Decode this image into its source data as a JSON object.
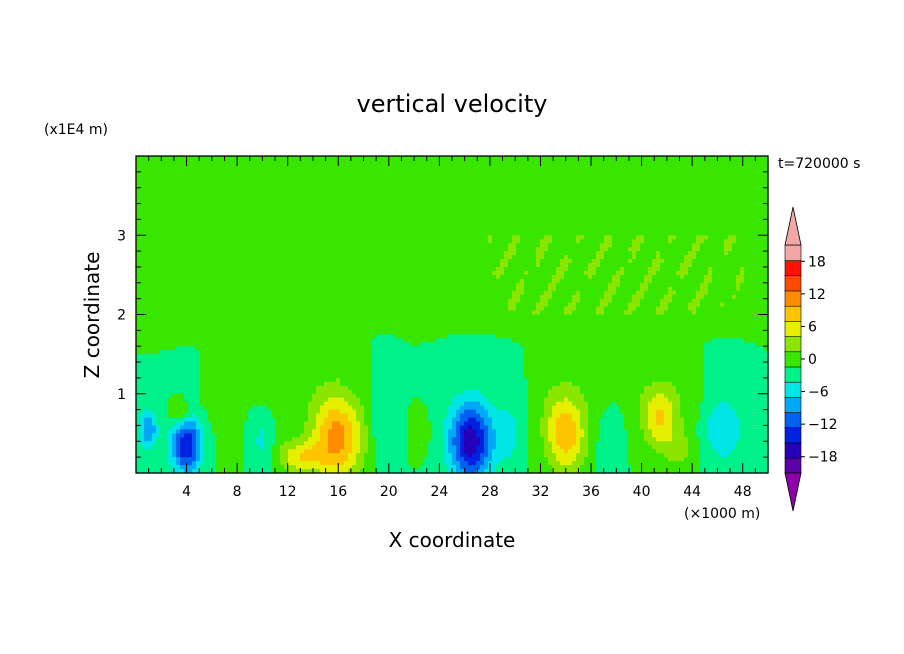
{
  "chart_data": {
    "type": "heatmap",
    "title": "vertical velocity",
    "xlabel": "X coordinate",
    "ylabel": "Z coordinate",
    "x_unit": "(×1000 m)",
    "y_unit": "(x1E4 m)",
    "time_label": "t=720000 s",
    "xlim": [
      0,
      50
    ],
    "ylim": [
      0,
      4
    ],
    "x_ticks": [
      4,
      8,
      12,
      16,
      20,
      24,
      28,
      32,
      36,
      40,
      44,
      48
    ],
    "x_tick_labels": [
      "4",
      "8",
      "12",
      "16",
      "20",
      "24",
      "28",
      "32",
      "36",
      "40",
      "44",
      "48"
    ],
    "y_ticks": [
      1,
      2,
      3
    ],
    "y_tick_labels": [
      "1",
      "2",
      "3"
    ],
    "colorbar": {
      "levels": [
        -21,
        -18,
        -15,
        -12,
        -9,
        -6,
        -3,
        0,
        3,
        6,
        9,
        12,
        15,
        18,
        21
      ],
      "colors": [
        "#5e00a8",
        "#2600b8",
        "#0022e0",
        "#0060f0",
        "#00a8f8",
        "#00e6e6",
        "#00f08a",
        "#38e600",
        "#8ae600",
        "#e6ef00",
        "#ffc400",
        "#ff8c00",
        "#ff4a00",
        "#ff1000",
        "#f3a6a6"
      ],
      "under_color": "#8e00a8",
      "over_color": "#f3a6a6",
      "tick_values": [
        18,
        12,
        6,
        0,
        -6,
        -12,
        -18
      ],
      "tick_labels": [
        "18",
        "12",
        "6",
        "0",
        "−6",
        "−12",
        "−18"
      ]
    },
    "blobs": [
      {
        "x": 1.0,
        "z": 0.55,
        "a": -9,
        "sx": 0.7,
        "sz": 0.25
      },
      {
        "x": 4.0,
        "z": 0.35,
        "a": -15,
        "sx": 1.2,
        "sz": 0.35
      },
      {
        "x": 3.5,
        "z": 0.75,
        "a": 6,
        "sx": 0.7,
        "sz": 0.15
      },
      {
        "x": 10.0,
        "z": 0.4,
        "a": -4,
        "sx": 1.0,
        "sz": 0.4
      },
      {
        "x": 13.0,
        "z": 0.2,
        "a": 8,
        "sx": 1.8,
        "sz": 0.2
      },
      {
        "x": 16.0,
        "z": 0.45,
        "a": 13,
        "sx": 2.0,
        "sz": 0.55
      },
      {
        "x": 19.5,
        "z": 0.6,
        "a": -3,
        "sx": 1.0,
        "sz": 0.5
      },
      {
        "x": 22.5,
        "z": 0.5,
        "a": 3,
        "sx": 0.6,
        "sz": 0.2
      },
      {
        "x": 26.5,
        "z": 0.4,
        "a": -17,
        "sx": 1.7,
        "sz": 0.5
      },
      {
        "x": 29.5,
        "z": 0.5,
        "a": -4,
        "sx": 1.0,
        "sz": 0.4
      },
      {
        "x": 34.0,
        "z": 0.5,
        "a": 11,
        "sx": 1.6,
        "sz": 0.5
      },
      {
        "x": 37.5,
        "z": 0.4,
        "a": -3,
        "sx": 1.0,
        "sz": 0.4
      },
      {
        "x": 41.5,
        "z": 0.7,
        "a": 9,
        "sx": 1.4,
        "sz": 0.4
      },
      {
        "x": 43.0,
        "z": 0.3,
        "a": 4,
        "sx": 1.0,
        "sz": 0.25
      },
      {
        "x": 46.5,
        "z": 0.55,
        "a": -6,
        "sx": 1.5,
        "sz": 0.4
      }
    ],
    "bands": [
      {
        "x0": 0,
        "x1": 12,
        "z": 3.1,
        "w": 0.25,
        "a": 1.5
      },
      {
        "x0": 16,
        "x1": 50,
        "z": 3.0,
        "w": 0.2,
        "a": 1.5
      },
      {
        "x0": 0,
        "x1": 50,
        "z": 2.58,
        "w": 0.25,
        "a": 1.5
      },
      {
        "x0": 0,
        "x1": 50,
        "z": 2.15,
        "w": 0.18,
        "a": 1.5
      },
      {
        "x0": 12,
        "x1": 23,
        "z": 3.6,
        "w": 0.55,
        "a": 1.5
      },
      {
        "x0": 5,
        "x1": 16,
        "z": 1.2,
        "w": 0.9,
        "a": 1.2
      },
      {
        "x0": 31,
        "x1": 45,
        "z": 1.3,
        "w": 0.8,
        "a": 1.3
      }
    ]
  }
}
